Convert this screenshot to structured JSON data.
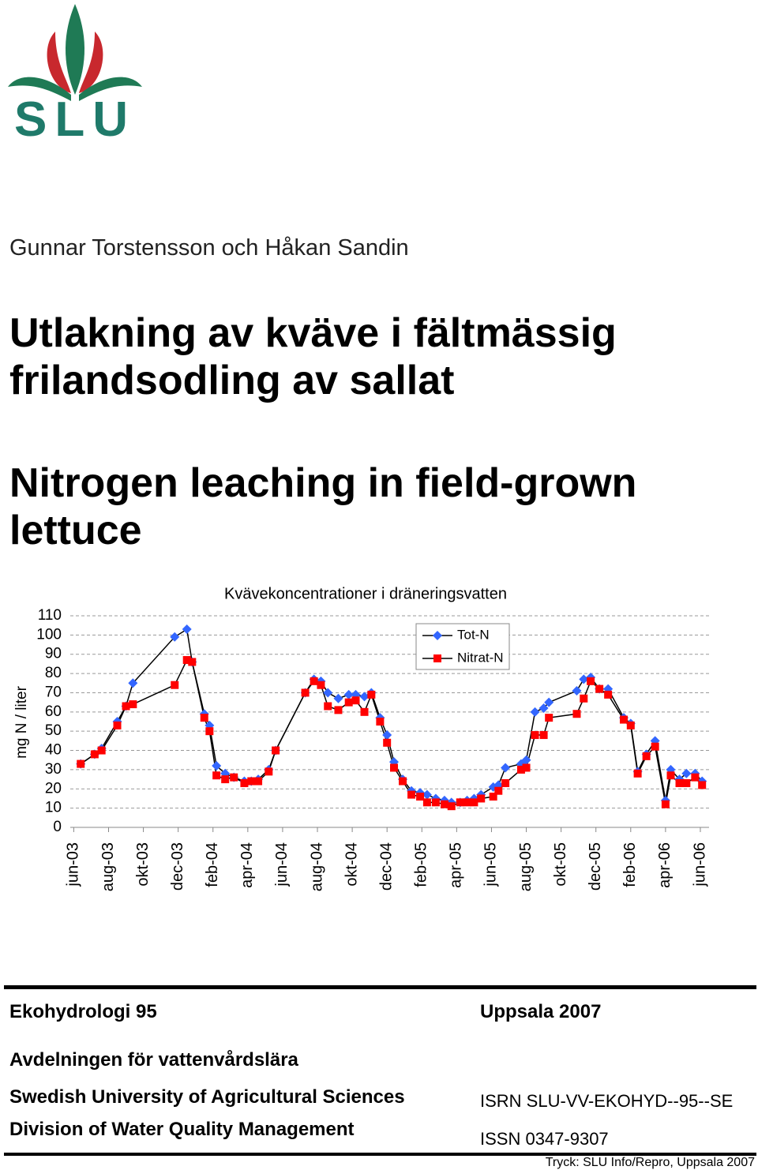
{
  "logo": {
    "text": "SLU"
  },
  "authors": "Gunnar Torstensson och Håkan Sandin",
  "title_sv": [
    "Utlakning av kväve i fältmässig",
    "frilandsodling av sallat"
  ],
  "title_en": [
    "Nitrogen leaching in field-grown",
    "lettuce"
  ],
  "chart_data": {
    "type": "line",
    "title": "Kvävekoncentrationer i dräneringsvatten",
    "y_label": "mg N / liter",
    "x": [
      0.4,
      1.2,
      1.6,
      2.5,
      3.0,
      3.4,
      5.8,
      6.5,
      6.8,
      7.5,
      7.8,
      8.2,
      8.7,
      9.2,
      9.8,
      10.2,
      10.6,
      11.2,
      11.6,
      13.3,
      13.8,
      14.2,
      14.6,
      15.2,
      15.8,
      16.2,
      16.7,
      17.1,
      17.6,
      18.0,
      18.4,
      18.9,
      19.4,
      19.9,
      20.3,
      20.8,
      21.3,
      21.7,
      22.2,
      22.6,
      23.0,
      23.4,
      24.1,
      24.4,
      24.8,
      25.7,
      26.0,
      26.5,
      27.0,
      27.3,
      28.9,
      29.3,
      29.7,
      30.2,
      30.7,
      31.6,
      32.0,
      32.4,
      32.9,
      33.4,
      34.0,
      34.3,
      34.8,
      35.2,
      35.7,
      36.1
    ],
    "series": [
      {
        "name": "Tot-N",
        "color": "#3366ff",
        "marker": "diamond",
        "values": [
          33,
          38,
          41,
          55,
          63,
          75,
          99,
          103,
          86,
          59,
          53,
          32,
          28,
          26,
          24,
          24,
          25,
          30,
          40,
          70,
          77,
          76,
          70,
          67,
          69,
          69,
          68,
          70,
          57,
          48,
          34,
          25,
          19,
          18,
          17,
          15,
          14,
          13,
          13,
          14,
          15,
          17,
          21,
          22,
          31,
          33,
          35,
          60,
          62,
          65,
          71,
          77,
          78,
          72,
          72,
          57,
          54,
          29,
          38,
          45,
          14,
          30,
          25,
          28,
          28,
          24
        ]
      },
      {
        "name": "Nitrat-N",
        "color": "#ff0000",
        "marker": "square",
        "values": [
          33,
          38,
          40,
          53,
          63,
          64,
          74,
          87,
          86,
          57,
          50,
          27,
          25,
          26,
          23,
          24,
          24,
          29,
          40,
          70,
          76,
          74,
          63,
          61,
          65,
          66,
          60,
          69,
          55,
          44,
          31,
          24,
          17,
          16,
          13,
          13,
          12,
          11,
          13,
          13,
          13,
          15,
          16,
          19,
          23,
          30,
          31,
          48,
          48,
          57,
          59,
          67,
          76,
          72,
          69,
          56,
          53,
          28,
          37,
          42,
          12,
          27,
          23,
          23,
          26,
          22
        ]
      }
    ],
    "xlim": [
      -0.2,
      36.5
    ],
    "xticks": [
      {
        "value": 0,
        "label": "jun-03"
      },
      {
        "value": 2,
        "label": "aug-03"
      },
      {
        "value": 4,
        "label": "okt-03"
      },
      {
        "value": 6,
        "label": "dec-03"
      },
      {
        "value": 8,
        "label": "feb-04"
      },
      {
        "value": 10,
        "label": "apr-04"
      },
      {
        "value": 12,
        "label": "jun-04"
      },
      {
        "value": 14,
        "label": "aug-04"
      },
      {
        "value": 16,
        "label": "okt-04"
      },
      {
        "value": 18,
        "label": "dec-04"
      },
      {
        "value": 20,
        "label": "feb-05"
      },
      {
        "value": 22,
        "label": "apr-05"
      },
      {
        "value": 24,
        "label": "jun-05"
      },
      {
        "value": 26,
        "label": "aug-05"
      },
      {
        "value": 28,
        "label": "okt-05"
      },
      {
        "value": 30,
        "label": "dec-05"
      },
      {
        "value": 32,
        "label": "feb-06"
      },
      {
        "value": 34,
        "label": "apr-06"
      },
      {
        "value": 36,
        "label": "jun-06"
      }
    ],
    "ylim": [
      0,
      110
    ],
    "yticks": [
      0,
      10,
      20,
      30,
      40,
      50,
      60,
      70,
      80,
      90,
      100,
      110
    ],
    "grid": true,
    "legend": "top-right"
  },
  "footer": {
    "series": "Ekohydrologi 95",
    "place_year": "Uppsala 2007",
    "department": "Avdelningen för vattenvårdslära",
    "university": "Swedish University of Agricultural Sciences",
    "division": "Division of Water Quality Management",
    "isrn": "ISRN SLU-VV-EKOHYD--95--SE",
    "issn": "ISSN 0347-9307",
    "print": "Tryck: SLU Info/Repro, Uppsala 2007"
  }
}
